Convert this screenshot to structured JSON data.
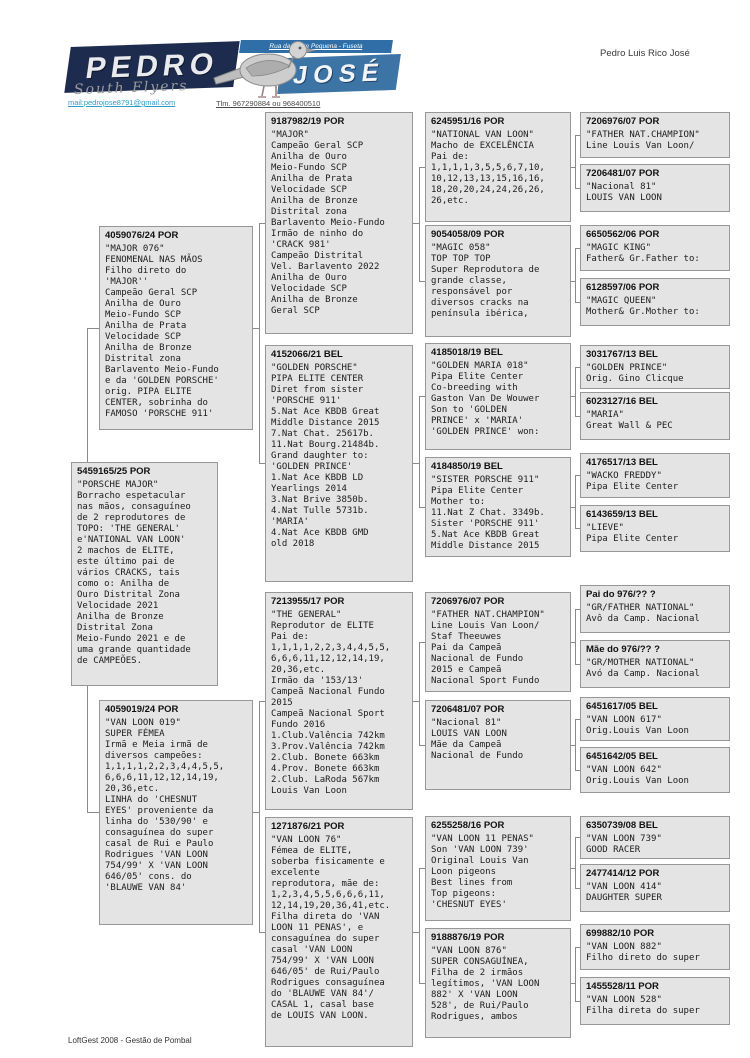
{
  "header": {
    "owner": "Pedro Luis Rico José",
    "logo": {
      "word_top": "PEDRO",
      "word_bottom": "JOSÉ",
      "address": "Rua da Ponte Pequena - Fuseta",
      "tagline": "South Flyers",
      "email": "mail:pedrojose8791@gmail.com",
      "phone": "Tlm. 967290884 ou 968400510"
    }
  },
  "footer": {
    "text": "LoftGest 2008 - Gestão de Pombal"
  },
  "pedigree": {
    "boxes": [
      {
        "role": "father",
        "ring": "4059076/24 POR",
        "body": "\"MAJOR 076\"\nFENOMENAL NAS MÃOS\nFilho direto do\n'MAJOR''\nCampeão Geral SCP\nAnilha de Ouro\nMeio-Fundo SCP\nAnilha de Prata\nVelocidade SCP\nAnilha de Bronze\nDistrital zona\nBarlavento Meio-Fundo\ne da 'GOLDEN PORSCHE'\norig. PIPA ELITE\nCENTER, sobrinha do\nFAMOSO 'PORSCHE 911'"
      },
      {
        "role": "subject",
        "ring": "5459165/25 POR",
        "body": "\"PORSCHE MAJOR\"\nBorracho espetacular\nnas mãos, consaguíneo\nde 2 reprodutores de\nTOPO: 'THE GENERAL'\ne'NATIONAL VAN LOON'\n2 machos de ELITE,\neste último pai de\nvários CRACKS, tais\ncomo o:  Anilha de\nOuro Distrital Zona\nVelocidade 2021\nAnilha de Bronze\nDistrital Zona\nMeio-Fundo 2021 e de\numa grande quantidade\nde CAMPEÕES."
      },
      {
        "role": "mother",
        "ring": "4059019/24 POR",
        "body": "\"VAN LOON 019\"\nSUPER FÉMEA\nIrmã e Meia irmã de\ndiversos campeões:\n1,1,1,1,2,2,3,4,4,5,5,\n6,6,6,11,12,12,14,19,\n20,36,etc.\nLINHA do 'CHESNUT\nEYES' proveniente da\nlinha do '530/90'  e\nconsaguínea do super\ncasal de Rui e Paulo\nRodrigues 'VAN LOON\n754/99'  X 'VAN LOON\n646/05'  cons. do\n'BLAUWE VAN 84'"
      },
      {
        "role": "paternal-grandfather",
        "ring": "9187982/19 POR",
        "body": "\"MAJOR\"\nCampeão Geral SCP\nAnilha de Ouro\nMeio-Fundo SCP\nAnilha de Prata\nVelocidade SCP\nAnilha de Bronze\nDistrital zona\nBarlavento Meio-Fundo\nIrmão de ninho do\n'CRACK 981'\nCampeão Distrital\nVel. Barlavento 2022\nAnilha de Ouro\nVelocidade SCP\nAnilha de Bronze\nGeral SCP"
      },
      {
        "role": "paternal-grandmother",
        "ring": "4152066/21 BEL",
        "body": "\"GOLDEN PORSCHE\"\nPIPA ELITE CENTER\nDiret from sister\n'PORSCHE 911'\n5.Nat Ace KBDB Great\nMiddle Distance 2015\n7.Nat Chat. 25617b.\n11.Nat Bourg.21484b.\nGrand daughter to:\n'GOLDEN PRINCE'\n1.Nat Ace KBDB LD\nYearlings 2014\n3.Nat Brive 3850b.\n4.Nat Tulle 5731b.\n'MARIA'\n4.Nat Ace KBDB GMD\nold 2018"
      },
      {
        "role": "maternal-grandfather",
        "ring": "7213955/17 POR",
        "body": "\"THE GENERAL\"\nReprodutor de ELITE\nPai de:\n1,1,1,1,2,2,3,4,4,5,5,\n6,6,6,11,12,12,14,19,\n20,36,etc.\nIrmão da '153/13'\nCampeã Nacional Fundo\n2015\nCampeã Nacional Sport\nFundo 2016\n1.Club.Valência 742km\n3.Prov.Valência 742km\n2.Club. Bonete  663km\n4.Prov. Bonete  663km\n2.Club. LaRoda 567km\nLouis Van Loon"
      },
      {
        "role": "maternal-grandmother",
        "ring": "1271876/21 POR",
        "body": "\"VAN LOON 76\"\nFémea de ELITE,\nsoberba fisicamente e\nexcelente\nreprodutora, mãe de:\n1,2,3,4,5,5,6,6,6,11,\n12,14,19,20,36,41,etc.\nFilha direta do 'VAN\nLOON 11 PENAS', e\nconsaguínea do super\ncasal  'VAN LOON\n754/99'  X 'VAN LOON\n646/05' de Rui/Paulo\nRodrigues consaguínea\ndo 'BLAUWE VAN 84'/\nCASAL 1, casal base\nde LOUIS VAN LOON."
      },
      {
        "role": "g3-1",
        "ring": "6245951/16 POR",
        "body": "\"NATIONAL VAN LOON\"\nMacho de EXCELÊNCIA\nPai de:\n1,1,1,1,3,5,5,6,7,10,\n10,12,13,13,15,16,16,\n18,20,20,24,24,26,26,\n26,etc."
      },
      {
        "role": "g3-2",
        "ring": "9054058/09 POR",
        "body": "\"MAGIC 058\"\nTOP TOP TOP\nSuper Reprodutora de\ngrande classe,\nresponsável por\ndiversos cracks na\npenínsula ibérica,"
      },
      {
        "role": "g3-3",
        "ring": "4185018/19 BEL",
        "body": "\"GOLDEN MARIA 018\"\nPipa Elite Center\nCo-breeding with\nGaston Van De Wouwer\nSon to 'GOLDEN\nPRINCE' x 'MARIA'\n'GOLDEN PRINCE' won:"
      },
      {
        "role": "g3-4",
        "ring": "4184850/19 BEL",
        "body": "\"SISTER PORSCHE 911\"\nPipa Elite Center\nMother to:\n11.Nat Z Chat. 3349b.\nSister 'PORSCHE 911'\n5.Nat Ace KBDB Great\nMiddle Distance 2015"
      },
      {
        "role": "g3-5",
        "ring": "7206976/07 POR",
        "body": "\"FATHER NAT.CHAMPION\"\nLine Louis Van Loon/\nStaf Theeuwes\nPai da Campeã\nNacional de Fundo\n2015 e Campeã\nNacional Sport Fundo"
      },
      {
        "role": "g3-6",
        "ring": "7206481/07 POR",
        "body": "\"Nacional 81\"\nLOUIS VAN LOON\nMãe da Campeã\nNacional de Fundo"
      },
      {
        "role": "g3-7",
        "ring": "6255258/16 POR",
        "body": "\"VAN LOON 11 PENAS\"\nSon 'VAN LOON 739'\nOriginal Louis Van\nLoon pigeons\nBest lines from\nTop pigeons:\n'CHESNUT EYES'"
      },
      {
        "role": "g3-8",
        "ring": "9188876/19 POR",
        "body": "\"VAN LOON 876\"\nSUPER CONSAGUÍNEA,\nFilha de 2 irmãos\nlegítimos,  'VAN LOON\n882'  X 'VAN LOON\n528', de Rui/Paulo\nRodrigues, ambos"
      },
      {
        "role": "g4-1",
        "ring": "7206976/07 POR",
        "body": "\"FATHER NAT.CHAMPION\"\nLine Louis Van Loon/"
      },
      {
        "role": "g4-2",
        "ring": "7206481/07 POR",
        "body": "\"Nacional 81\"\nLOUIS VAN LOON"
      },
      {
        "role": "g4-3",
        "ring": "6650562/06 POR",
        "body": "\"MAGIC KING\"\nFather& Gr.Father to:"
      },
      {
        "role": "g4-4",
        "ring": "6128597/06 POR",
        "body": "\"MAGIC QUEEN\"\nMother& Gr.Mother to:"
      },
      {
        "role": "g4-5",
        "ring": "3031767/13 BEL",
        "body": "\"GOLDEN PRINCE\"\nOrig. Gino Clicque"
      },
      {
        "role": "g4-6",
        "ring": "6023127/16 BEL",
        "body": "\"MARIA\"\nGreat Wall & PEC"
      },
      {
        "role": "g4-7",
        "ring": "4176517/13 BEL",
        "body": "\"WACKO FREDDY\"\nPipa Elite Center"
      },
      {
        "role": "g4-8",
        "ring": "6143659/13 BEL",
        "body": "\"LIEVE\"\nPipa Elite Center"
      },
      {
        "role": "g4-9",
        "ring": "Pai do 976/?? ?",
        "body": "\"GR/FATHER NATIONAL\"\nAvô da Camp. Nacional"
      },
      {
        "role": "g4-10",
        "ring": "Mãe do 976/?? ?",
        "body": "\"GR/MOTHER NATIONAL\"\nAvó da Camp. Nacional"
      },
      {
        "role": "g4-11",
        "ring": "6451617/05 BEL",
        "body": "\"VAN LOON 617\"\nOrig.Louis Van Loon"
      },
      {
        "role": "g4-12",
        "ring": "6451642/05 BEL",
        "body": "\"VAN LOON 642\"\nOrig.Louis Van Loon"
      },
      {
        "role": "g4-13",
        "ring": "6350739/08 BEL",
        "body": "\"VAN LOON 739\"\nGOOD RACER"
      },
      {
        "role": "g4-14",
        "ring": "2477414/12 POR",
        "body": "\"VAN LOON 414\"\nDAUGHTER SUPER"
      },
      {
        "role": "g4-15",
        "ring": "699882/10 POR",
        "body": "\"VAN LOON 882\"\nFilho direto do super"
      },
      {
        "role": "g4-16",
        "ring": "1455528/11 POR",
        "body": "\"VAN LOON 528\"\nFilha direta do super"
      }
    ]
  }
}
